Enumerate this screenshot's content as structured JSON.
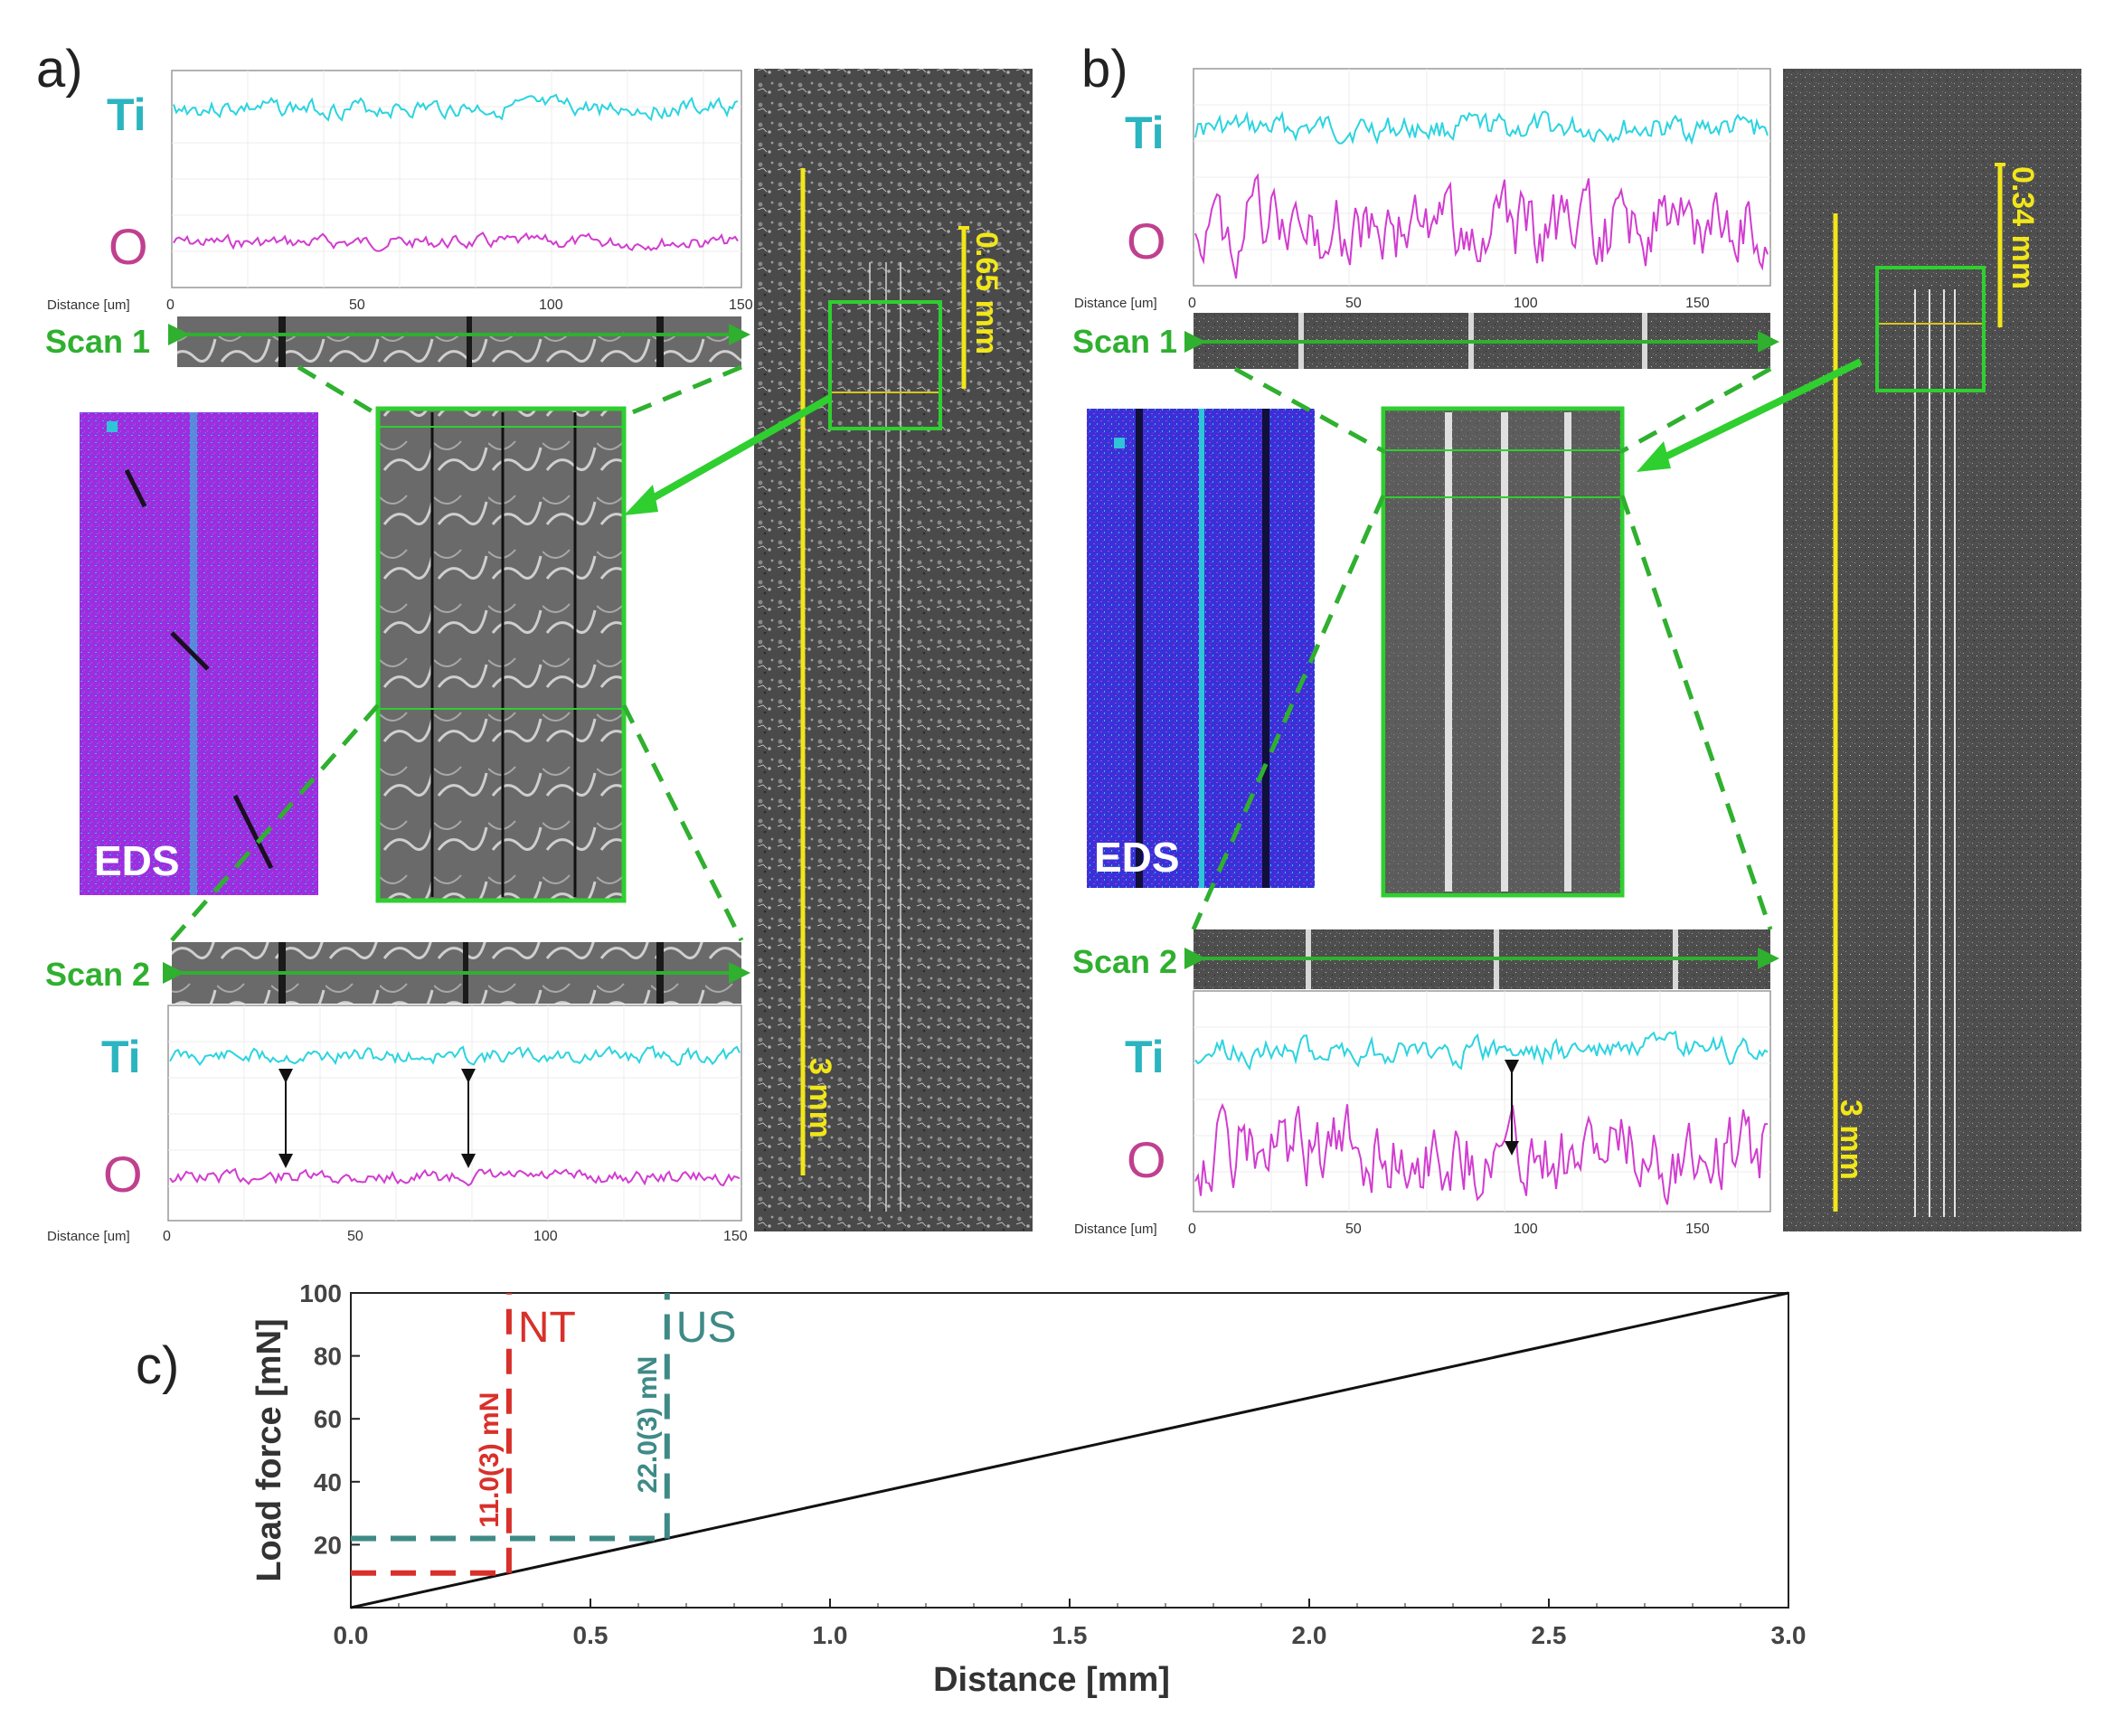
{
  "panels": {
    "a": {
      "label": "a)",
      "scan1": {
        "label": "Scan 1",
        "element_top": "Ti",
        "element_bottom": "O",
        "axis_title": "Distance [um]",
        "ticks": [
          "0",
          "50",
          "100",
          "150"
        ]
      },
      "scan2": {
        "label": "Scan 2",
        "element_top": "Ti",
        "element_bottom": "O",
        "axis_title": "Distance [um]",
        "ticks": [
          "0",
          "50",
          "100",
          "150"
        ]
      },
      "eds_label": "EDS",
      "scale_small": "0.65 mm",
      "scale_large": "3 mm"
    },
    "b": {
      "label": "b)",
      "scan1": {
        "label": "Scan 1",
        "element_top": "Ti",
        "element_bottom": "O",
        "axis_title": "Distance [um]",
        "ticks": [
          "0",
          "50",
          "100",
          "150"
        ]
      },
      "scan2": {
        "label": "Scan 2",
        "element_top": "Ti",
        "element_bottom": "O",
        "axis_title": "Distance [um]",
        "ticks": [
          "0",
          "50",
          "100",
          "150"
        ]
      },
      "eds_label": "EDS",
      "scale_small": "0.34 mm",
      "scale_large": "3 mm"
    },
    "c": {
      "label": "c)"
    }
  },
  "colors": {
    "ti": "#2bb5c0",
    "o": "#c0408f",
    "scan": "#2fb02f",
    "scale": "#f1e61a",
    "nt": "#d9302a",
    "us": "#3e8a86"
  },
  "chart_data": {
    "type": "line",
    "title": "",
    "xlabel": "Distance [mm]",
    "ylabel": "Load force [mN]",
    "xlim": [
      0.0,
      3.0
    ],
    "ylim": [
      0,
      100
    ],
    "xticks": [
      0.0,
      0.5,
      1.0,
      1.5,
      2.0,
      2.5,
      3.0
    ],
    "xtick_labels": [
      "0.0",
      "0.5",
      "1.0",
      "1.5",
      "2.0",
      "2.5",
      "3.0"
    ],
    "yticks": [
      20,
      40,
      60,
      80,
      100
    ],
    "ytick_labels": [
      "20",
      "40",
      "60",
      "80",
      "100"
    ],
    "series": [
      {
        "name": "load ramp",
        "x": [
          0.0,
          3.0
        ],
        "y": [
          0,
          100
        ]
      }
    ],
    "annotations": [
      {
        "name": "NT",
        "label": "NT",
        "value_label": "11.0(3) mN",
        "x": 0.33,
        "y": 11.0
      },
      {
        "name": "US",
        "label": "US",
        "value_label": "22.0(3) mN",
        "x": 0.66,
        "y": 22.0
      }
    ]
  }
}
